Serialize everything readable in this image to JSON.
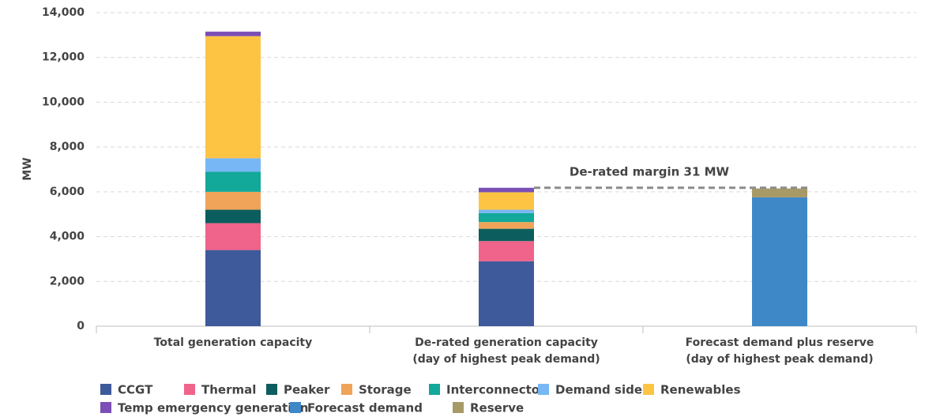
{
  "chart_data": {
    "type": "stacked-bar",
    "ylabel": "MW",
    "categories": [
      [
        "Total generation capacity"
      ],
      [
        "De-rated generation capacity",
        "(day of highest peak demand)"
      ],
      [
        "Forecast demand plus reserve",
        "(day of highest peak demand)"
      ]
    ],
    "series": [
      {
        "name": "CCGT",
        "color": "#3f5a9b",
        "values": [
          3400,
          2900,
          null
        ]
      },
      {
        "name": "Thermal",
        "color": "#f0638a",
        "values": [
          1200,
          900,
          null
        ]
      },
      {
        "name": "Peaker",
        "color": "#0c5e5e",
        "values": [
          600,
          550,
          null
        ]
      },
      {
        "name": "Storage",
        "color": "#f0a45a",
        "values": [
          800,
          300,
          null
        ]
      },
      {
        "name": "Interconnector",
        "color": "#12a89a",
        "values": [
          900,
          400,
          null
        ]
      },
      {
        "name": "Demand side",
        "color": "#77b7f5",
        "values": [
          600,
          150,
          null
        ]
      },
      {
        "name": "Renewables",
        "color": "#fdc444",
        "values": [
          5450,
          780,
          null
        ]
      },
      {
        "name": "Temp emergency generation",
        "color": "#7b4fb5",
        "values": [
          200,
          200,
          null
        ]
      },
      {
        "name": "Forecast demand",
        "color": "#3f88c8",
        "values": [
          null,
          null,
          5750
        ]
      },
      {
        "name": "Reserve",
        "color": "#a89a66",
        "values": [
          null,
          null,
          400
        ]
      }
    ],
    "ylim": [
      0,
      14000
    ],
    "yticks": [
      0,
      {
        "value": 2000,
        "label": "2,000"
      },
      {
        "value": 4000,
        "label": "4,000"
      },
      {
        "value": 6000,
        "label": "6,000"
      },
      {
        "value": 8000,
        "label": "8,000"
      },
      {
        "value": 10000,
        "label": "10,000"
      },
      {
        "value": 12000,
        "label": "12,000"
      },
      {
        "value": 14000,
        "label": "14,000"
      }
    ],
    "grid": true,
    "annotation": "De-rated margin 31 MW",
    "legend": "bottom"
  }
}
